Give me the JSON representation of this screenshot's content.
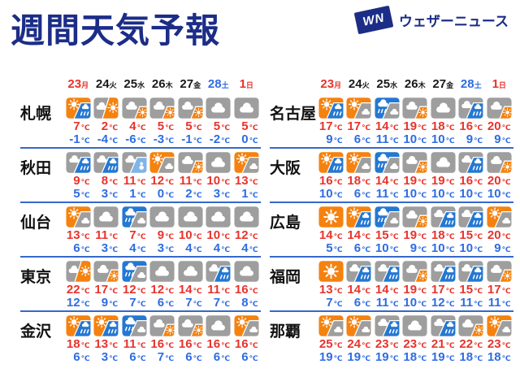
{
  "page": {
    "title": "週間天気予報",
    "logo": {
      "mark": "WN",
      "text": "ウェザーニュース"
    }
  },
  "unit": "℃",
  "colors": {
    "title_navy": "#1c2d87",
    "temp_high_red": "#e8332c",
    "temp_low_blue": "#2e6ce2",
    "date_black": "#1a1a1a",
    "divider_blue": "#3668cc",
    "icon_orange": "#f5820f",
    "icon_gray": "#9e9e9e",
    "icon_rain_blue": "#2478d2",
    "icon_snow_blue": "#7fb5e8"
  },
  "dates": [
    {
      "num": "23",
      "dow": "月",
      "color": "sun"
    },
    {
      "num": "24",
      "dow": "火",
      "color": "weekday"
    },
    {
      "num": "25",
      "dow": "水",
      "color": "weekday"
    },
    {
      "num": "26",
      "dow": "木",
      "color": "weekday"
    },
    {
      "num": "27",
      "dow": "金",
      "color": "weekday"
    },
    {
      "num": "28",
      "dow": "土",
      "color": "sat"
    },
    {
      "num": "1",
      "dow": "日",
      "color": "sun"
    }
  ],
  "columns": [
    {
      "cities": [
        {
          "name": "札幌",
          "icons": [
            "sunny-then-rain",
            "cloudy-then-sunny",
            "cloudy-partly-sunny",
            "cloudy-partly-sunny",
            "cloudy-partly-sunny",
            "cloudy",
            "cloudy"
          ],
          "highs": [
            "7",
            "2",
            "4",
            "5",
            "5",
            "5",
            "5"
          ],
          "lows": [
            "-1",
            "-4",
            "-6",
            "-3",
            "-1",
            "-2",
            "0"
          ]
        },
        {
          "name": "秋田",
          "icons": [
            "cloudy-then-rain",
            "cloudy-then-rain",
            "cloudy-then-snow",
            "sunny-then-cloudy",
            "cloudy-partly-sunny",
            "cloudy",
            "sunny-then-cloudy"
          ],
          "highs": [
            "9",
            "8",
            "11",
            "12",
            "11",
            "10",
            "13"
          ],
          "lows": [
            "5",
            "3",
            "1",
            "0",
            "2",
            "3",
            "1"
          ]
        },
        {
          "name": "仙台",
          "icons": [
            "sunny-then-cloudy",
            "cloudy",
            "rainy-then-cloudy",
            "cloudy",
            "cloudy",
            "cloudy",
            "cloudy"
          ],
          "highs": [
            "13",
            "11",
            "7",
            "9",
            "10",
            "10",
            "12"
          ],
          "lows": [
            "6",
            "3",
            "4",
            "3",
            "4",
            "4",
            "4"
          ]
        },
        {
          "name": "東京",
          "icons": [
            "cloudy-then-sunny",
            "cloudy-partly-sunny",
            "rainy-then-cloudy",
            "cloudy",
            "cloudy",
            "cloudy-then-rain",
            "cloudy"
          ],
          "highs": [
            "22",
            "17",
            "12",
            "12",
            "14",
            "11",
            "16"
          ],
          "lows": [
            "12",
            "9",
            "7",
            "6",
            "7",
            "7",
            "8"
          ]
        },
        {
          "name": "金沢",
          "icons": [
            "sunny-then-rain",
            "sunny-then-rain",
            "rainy-then-cloudy",
            "cloudy-partly-sunny",
            "cloudy-partly-sunny",
            "cloudy",
            "sunny-then-cloudy"
          ],
          "highs": [
            "18",
            "13",
            "11",
            "16",
            "16",
            "16",
            "16"
          ],
          "lows": [
            "6",
            "3",
            "6",
            "7",
            "6",
            "6",
            "6"
          ]
        }
      ]
    },
    {
      "cities": [
        {
          "name": "名古屋",
          "icons": [
            "sunny-then-rain",
            "sunny-then-cloudy",
            "rainy-then-cloudy",
            "cloudy-partly-sunny",
            "cloudy",
            "cloudy-then-rain",
            "cloudy-partly-sunny"
          ],
          "highs": [
            "17",
            "17",
            "14",
            "19",
            "18",
            "16",
            "20"
          ],
          "lows": [
            "9",
            "6",
            "11",
            "10",
            "10",
            "9",
            "9"
          ]
        },
        {
          "name": "大阪",
          "icons": [
            "sunny-then-rain",
            "sunny-then-cloudy",
            "rainy-then-cloudy",
            "cloudy-partly-sunny",
            "cloudy",
            "cloudy-then-rain",
            "cloudy-partly-sunny"
          ],
          "highs": [
            "16",
            "18",
            "14",
            "19",
            "19",
            "16",
            "20"
          ],
          "lows": [
            "10",
            "6",
            "11",
            "10",
            "10",
            "10",
            "10"
          ]
        },
        {
          "name": "広島",
          "icons": [
            "sunny",
            "sunny-then-rain",
            "rainy-then-cloudy",
            "cloudy-partly-sunny",
            "cloudy-then-rain",
            "cloudy-then-rain",
            "sunny-then-cloudy"
          ],
          "highs": [
            "14",
            "14",
            "15",
            "19",
            "18",
            "15",
            "20"
          ],
          "lows": [
            "5",
            "6",
            "10",
            "9",
            "10",
            "10",
            "9"
          ]
        },
        {
          "name": "福岡",
          "icons": [
            "sunny",
            "cloudy-then-rain",
            "cloudy-then-rain",
            "cloudy-partly-sunny",
            "cloudy-then-rain",
            "cloudy-then-rain",
            "cloudy-partly-sunny"
          ],
          "highs": [
            "13",
            "14",
            "14",
            "19",
            "17",
            "15",
            "17"
          ],
          "lows": [
            "7",
            "6",
            "11",
            "10",
            "12",
            "11",
            "11"
          ]
        },
        {
          "name": "那覇",
          "icons": [
            "sunny-then-cloudy",
            "sunny-then-cloudy",
            "cloudy-then-rain",
            "cloudy",
            "cloudy-then-rain",
            "cloudy-partly-sunny",
            "sunny-then-cloudy"
          ],
          "highs": [
            "25",
            "24",
            "23",
            "23",
            "21",
            "22",
            "23"
          ],
          "lows": [
            "19",
            "19",
            "19",
            "18",
            "19",
            "18",
            "18"
          ]
        }
      ]
    }
  ]
}
